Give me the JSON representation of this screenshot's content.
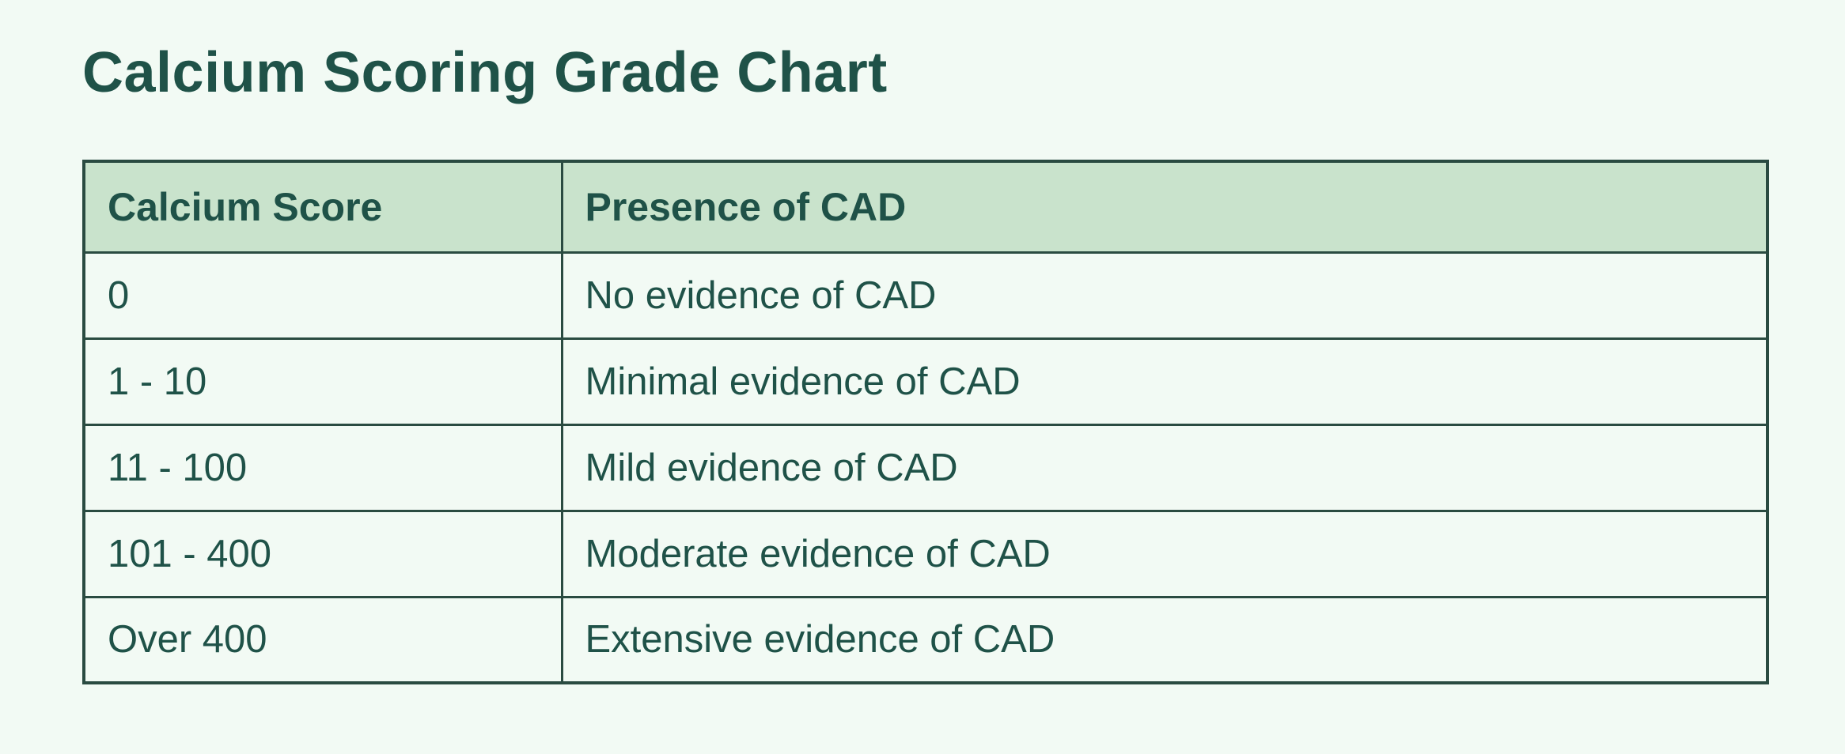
{
  "title": "Calcium Scoring Grade Chart",
  "colors": {
    "page_bg": "#f2faf4",
    "header_bg": "#c9e3cc",
    "text": "#1f5248",
    "border": "#2a4b41"
  },
  "chart_data": {
    "type": "table",
    "title": "Calcium Scoring Grade Chart",
    "columns": [
      "Calcium Score",
      "Presence of CAD"
    ],
    "rows": [
      [
        "0",
        "No evidence of CAD"
      ],
      [
        "1 - 10",
        "Minimal evidence of CAD"
      ],
      [
        "11 - 100",
        "Mild evidence of CAD"
      ],
      [
        "101 - 400",
        "Moderate evidence of CAD"
      ],
      [
        "Over 400",
        "Extensive evidence of CAD"
      ]
    ],
    "layout": {
      "legend": "none",
      "grid": "table-borders",
      "header_fill": "#c9e3cc"
    }
  }
}
